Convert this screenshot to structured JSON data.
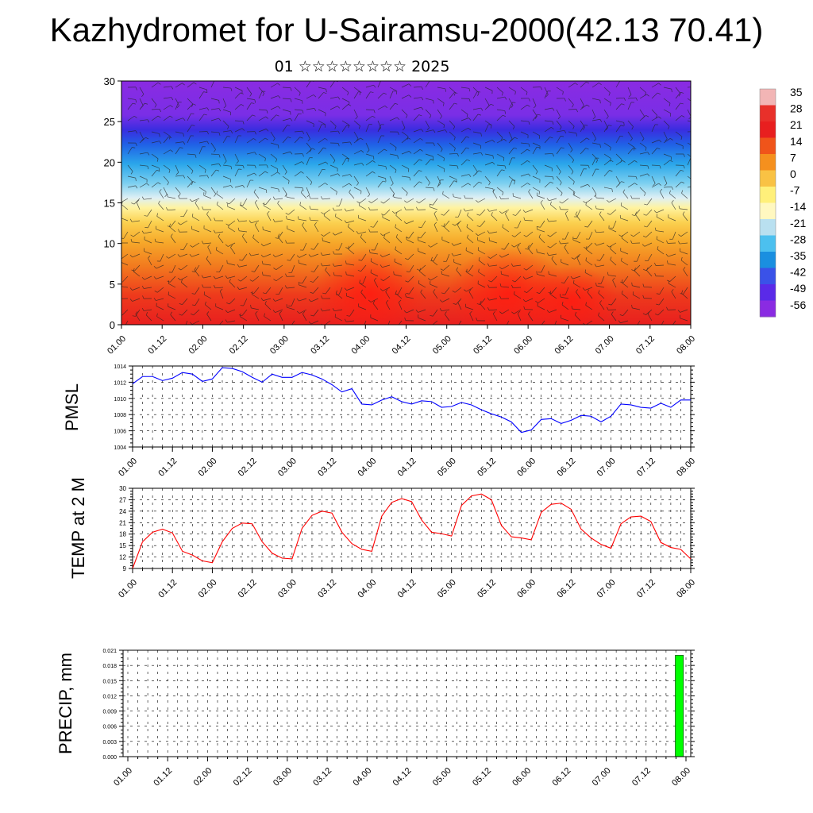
{
  "page": {
    "title": "Kazhydromet for U-Sairamsu-2000(42.13 70.41)",
    "subtitle": "01 ☆☆☆☆☆☆☆☆ 2025"
  },
  "chart_data": [
    {
      "type": "heatmap",
      "name": "temperature-wind-cross-section",
      "ylim": [
        0,
        30
      ],
      "y_ticks": [
        "0",
        "5",
        "10",
        "15",
        "20",
        "25",
        "30"
      ],
      "x_ticks": [
        "01.00",
        "01.12",
        "02.00",
        "02.12",
        "03.00",
        "03.12",
        "04.00",
        "04.12",
        "05.00",
        "05.12",
        "06.00",
        "06.12",
        "07.00",
        "07.12",
        "08.00"
      ],
      "colorbar": {
        "labels": [
          "35",
          "28",
          "21",
          "14",
          "7",
          "0",
          "-7",
          "-14",
          "-21",
          "-28",
          "-35",
          "-42",
          "-49",
          "-56"
        ],
        "colors": [
          "#f2b5b5",
          "#e8302a",
          "#e81f1f",
          "#f0541a",
          "#f5901e",
          "#f9c244",
          "#fff07a",
          "#fff8c0",
          "#b9e0f0",
          "#4cc0ef",
          "#1a8fe0",
          "#3a52e8",
          "#5a2ae8",
          "#8a2be2"
        ]
      }
    },
    {
      "type": "line",
      "name": "pmsl",
      "ylabel": "PMSL",
      "ylim": [
        1004,
        1014
      ],
      "y_ticks": [
        "1004",
        "1006",
        "1008",
        "1010",
        "1012",
        "1014"
      ],
      "x_ticks": [
        "01.00",
        "01.12",
        "02.00",
        "02.12",
        "03.00",
        "03.12",
        "04.00",
        "04.12",
        "05.00",
        "05.12",
        "06.00",
        "06.12",
        "07.00",
        "07.12",
        "08.00"
      ],
      "color": "#0000ff",
      "x_step_hours": 3,
      "values": [
        1011.8,
        1012.7,
        1012.7,
        1012.2,
        1012.5,
        1013.2,
        1013.0,
        1012.1,
        1012.4,
        1013.8,
        1013.7,
        1013.3,
        1012.6,
        1012.0,
        1013.0,
        1012.6,
        1012.6,
        1013.2,
        1012.9,
        1012.4,
        1011.7,
        1010.8,
        1011.2,
        1009.3,
        1009.2,
        1009.8,
        1010.2,
        1009.6,
        1009.3,
        1009.7,
        1009.6,
        1008.9,
        1009.0,
        1009.5,
        1009.2,
        1008.6,
        1008.1,
        1007.7,
        1007.1,
        1005.8,
        1006.1,
        1007.4,
        1007.5,
        1006.9,
        1007.3,
        1007.9,
        1007.8,
        1007.1,
        1007.8,
        1009.3,
        1009.2,
        1008.9,
        1008.8,
        1009.4,
        1008.9,
        1009.8,
        1009.8
      ]
    },
    {
      "type": "line",
      "name": "temp-2m",
      "ylabel": "TEMP at 2 M",
      "ylim": [
        9,
        30
      ],
      "y_ticks": [
        "9",
        "12",
        "15",
        "18",
        "21",
        "24",
        "27",
        "30"
      ],
      "x_ticks": [
        "01.00",
        "01.12",
        "02.00",
        "02.12",
        "03.00",
        "03.12",
        "04.00",
        "04.12",
        "05.00",
        "05.12",
        "06.00",
        "06.12",
        "07.00",
        "07.12",
        "08.00"
      ],
      "color": "#ff0000",
      "x_step_hours": 3,
      "values": [
        9.0,
        16.0,
        18.5,
        19.3,
        18.3,
        13.5,
        12.5,
        11.0,
        10.5,
        16.0,
        19.5,
        20.9,
        20.7,
        16.0,
        13.0,
        11.7,
        11.5,
        19.5,
        22.9,
        24.0,
        23.5,
        18.5,
        15.5,
        14.0,
        13.5,
        22.7,
        26.3,
        27.3,
        26.5,
        21.7,
        18.5,
        18.1,
        17.5,
        25.5,
        28.0,
        28.5,
        27.0,
        20.3,
        17.3,
        17.0,
        16.5,
        23.7,
        25.8,
        26.1,
        24.5,
        19.3,
        17.0,
        15.3,
        14.3,
        20.7,
        22.5,
        22.7,
        21.3,
        15.8,
        14.5,
        14.0,
        11.5
      ]
    },
    {
      "type": "bar",
      "name": "precip",
      "ylabel": "PRECIP, mm",
      "ylim": [
        0,
        0.021
      ],
      "y_ticks": [
        "0.000",
        "0.003",
        "0.006",
        "0.009",
        "0.012",
        "0.015",
        "0.018",
        "0.021"
      ],
      "x_ticks": [
        "01.00",
        "01.12",
        "02.00",
        "02.12",
        "03.00",
        "03.12",
        "04.00",
        "04.12",
        "05.00",
        "05.12",
        "06.00",
        "06.12",
        "07.00",
        "07.12",
        "08.00"
      ],
      "color": "#00ff00",
      "bars": [
        {
          "x_hours": 166,
          "width_hours": 2,
          "value": 0.02
        }
      ]
    }
  ]
}
